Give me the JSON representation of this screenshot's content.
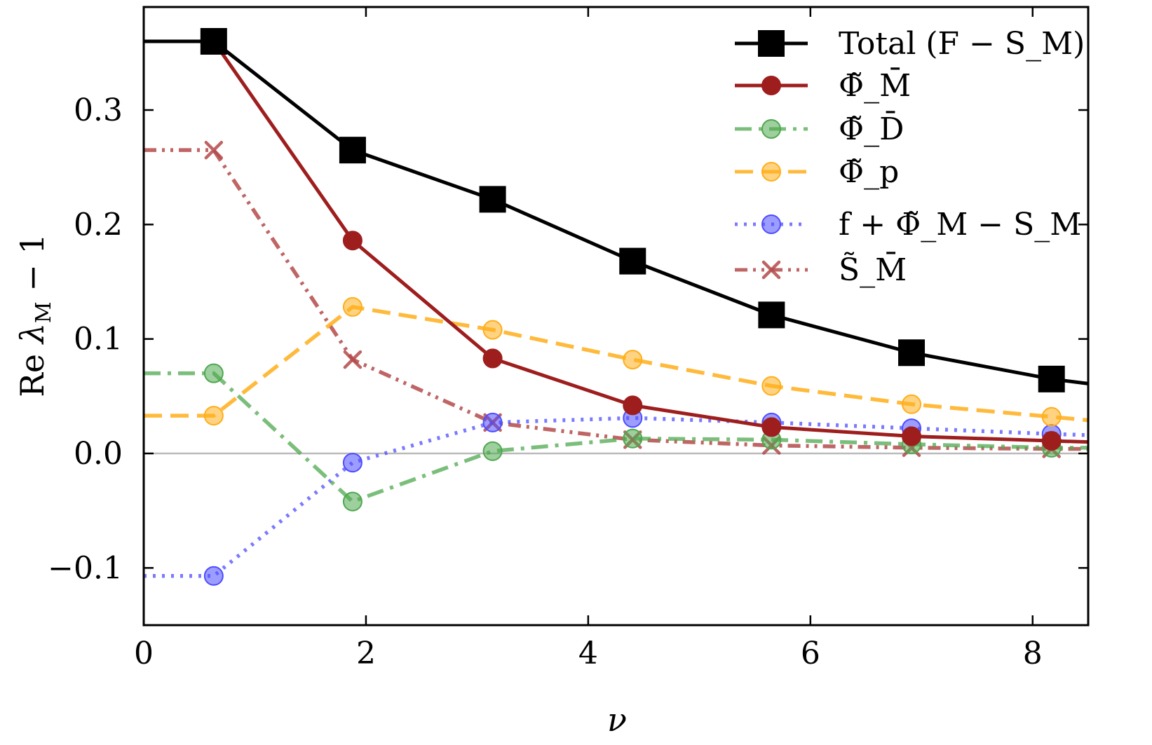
{
  "chart_data": {
    "type": "line",
    "title": "",
    "xlabel": "ν",
    "ylabel": "Re λ_M − 1",
    "xlim": [
      0,
      8.5
    ],
    "ylim": [
      -0.15,
      0.39
    ],
    "xticks": [
      0,
      2,
      4,
      6,
      8
    ],
    "xtick_labels": [
      "0",
      "2",
      "4",
      "6",
      "8"
    ],
    "yticks": [
      -0.1,
      0.0,
      0.1,
      0.2,
      0.3
    ],
    "ytick_labels": [
      "−0.1",
      "0.0",
      "0.1",
      "0.2",
      "0.3"
    ],
    "zero_line": true,
    "grid": false,
    "legend_position": "top-right",
    "series": [
      {
        "name": "Total (F − S_M)",
        "color": "#000000",
        "dash": "",
        "marker": "square",
        "opacity": 1.0,
        "x": [
          0,
          0.63,
          1.88,
          3.14,
          4.4,
          5.65,
          6.91,
          8.17,
          8.5
        ],
        "y": [
          0.36,
          0.36,
          0.265,
          0.222,
          0.168,
          0.121,
          0.088,
          0.065,
          0.061
        ],
        "markers": [
          1,
          2,
          3,
          4,
          5,
          6,
          7
        ]
      },
      {
        "name": "Φ̃_M̄",
        "color": "#9e1e1e",
        "dash": "",
        "marker": "circle",
        "opacity": 1.0,
        "x": [
          0,
          0.63,
          1.88,
          3.14,
          4.4,
          5.65,
          6.91,
          8.17,
          8.5
        ],
        "y": [
          0.36,
          0.36,
          0.186,
          0.083,
          0.042,
          0.023,
          0.015,
          0.011,
          0.01
        ],
        "markers": [
          1,
          2,
          3,
          4,
          5,
          6,
          7
        ]
      },
      {
        "name": "Φ̃_D̄",
        "color": "#4fa84f",
        "dash": "24,10,5,10",
        "marker": "circle",
        "opacity": 0.75,
        "x": [
          0,
          0.63,
          1.88,
          3.14,
          4.4,
          5.65,
          6.91,
          8.17,
          8.5
        ],
        "y": [
          0.07,
          0.07,
          -0.042,
          0.002,
          0.013,
          0.012,
          0.008,
          0.005,
          0.005
        ],
        "markers": [
          1,
          2,
          3,
          4,
          5,
          6,
          7
        ]
      },
      {
        "name": "Φ̃_p",
        "color": "#ffae1a",
        "dash": "26,12",
        "marker": "circle",
        "opacity": 0.85,
        "x": [
          0,
          0.63,
          1.88,
          3.14,
          4.4,
          5.65,
          6.91,
          8.17,
          8.5
        ],
        "y": [
          0.033,
          0.033,
          0.128,
          0.108,
          0.082,
          0.059,
          0.043,
          0.032,
          0.029
        ],
        "markers": [
          1,
          2,
          3,
          4,
          5,
          6,
          7
        ]
      },
      {
        "name": "f + Φ̃_M − S_M",
        "color": "#4d4dff",
        "dash": "4,9",
        "marker": "circle",
        "opacity": 0.75,
        "x": [
          0,
          0.63,
          1.88,
          3.14,
          4.4,
          5.65,
          6.91,
          8.17,
          8.5
        ],
        "y": [
          -0.107,
          -0.107,
          -0.008,
          0.027,
          0.031,
          0.027,
          0.022,
          0.017,
          0.016
        ],
        "markers": [
          1,
          2,
          3,
          4,
          5,
          6,
          7
        ]
      },
      {
        "name": "S̃_M̄",
        "color": "#b44a4a",
        "dash": "18,8,4,8,4,8",
        "marker": "x",
        "opacity": 0.85,
        "x": [
          0,
          0.63,
          1.88,
          3.14,
          4.4,
          5.65,
          6.91,
          8.17,
          8.5
        ],
        "y": [
          0.265,
          0.265,
          0.082,
          0.027,
          0.012,
          0.007,
          0.005,
          0.004,
          0.004
        ],
        "markers": [
          1,
          2,
          3,
          4,
          5,
          6,
          7
        ]
      }
    ]
  }
}
